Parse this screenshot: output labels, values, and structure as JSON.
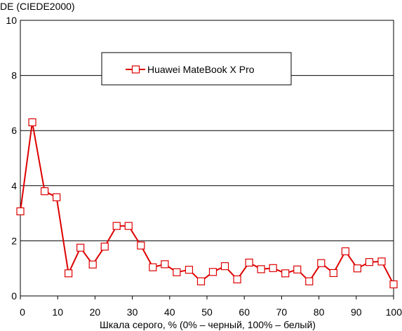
{
  "chart_data": {
    "type": "line",
    "ylabel": "DE (CIEDE2000)",
    "xlabel": "Шкала серого, % (0% – черный, 100% – белый)",
    "xlim": [
      0,
      100
    ],
    "ylim": [
      0,
      10
    ],
    "x_ticks": [
      0,
      10,
      20,
      30,
      40,
      50,
      60,
      70,
      80,
      90,
      100
    ],
    "y_ticks": [
      0,
      2,
      4,
      6,
      8,
      10
    ],
    "grid": "horizontal",
    "legend_position": "top-center",
    "series": [
      {
        "name": "Huawei MateBook X Pro",
        "color": "#dd0000",
        "marker": "open-square",
        "x": [
          0,
          3.2,
          6.5,
          9.7,
          12.9,
          16.1,
          19.4,
          22.6,
          25.8,
          29.0,
          32.3,
          35.5,
          38.7,
          41.9,
          45.2,
          48.4,
          51.6,
          54.8,
          58.1,
          61.3,
          64.5,
          67.7,
          71.0,
          74.2,
          77.4,
          80.6,
          83.9,
          87.1,
          90.3,
          93.5,
          96.8,
          100
        ],
        "y": [
          3.07,
          6.3,
          3.8,
          3.58,
          0.82,
          1.75,
          1.14,
          1.79,
          2.54,
          2.54,
          1.83,
          1.04,
          1.15,
          0.86,
          0.95,
          0.53,
          0.87,
          1.08,
          0.6,
          1.21,
          0.97,
          1.01,
          0.82,
          0.96,
          0.53,
          1.19,
          0.83,
          1.62,
          1.0,
          1.23,
          1.25,
          0.42
        ]
      }
    ]
  }
}
